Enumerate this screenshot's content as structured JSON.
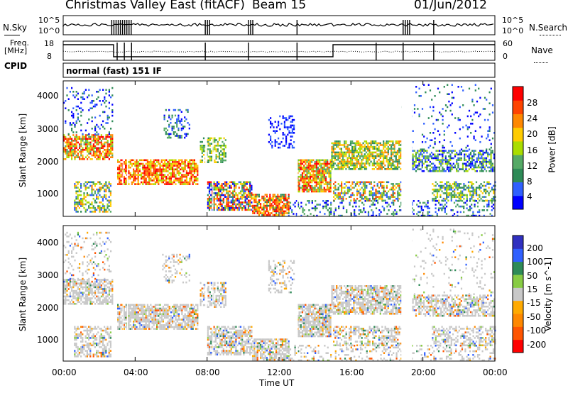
{
  "header": {
    "title": "Christmas Valley East (fitACF)",
    "beam": "Beam 15",
    "date": "01/Jun/2012"
  },
  "panels": {
    "nsky": {
      "label": "N.Sky",
      "yticks": [
        "10^5",
        "10^0"
      ],
      "right_ticks": [
        "10^5",
        "10^0"
      ],
      "right_label": "N.Search"
    },
    "freq": {
      "label1": "Freq.",
      "label2": "[MHz]",
      "yticks": [
        "18",
        "8"
      ],
      "right_ticks": [
        "60",
        "0"
      ],
      "right_label": "Nave"
    },
    "cpid": {
      "label": "CPID",
      "text": "normal (fast) 151 IF"
    }
  },
  "colors": {
    "power": [
      "#0000ff",
      "#3060ff",
      "#2e8b57",
      "#55aa66",
      "#aadd00",
      "#ffcc00",
      "#ff8800",
      "#ff4400",
      "#ff0000"
    ],
    "velocity": [
      "#3030c0",
      "#3060ff",
      "#2e8b57",
      "#88cc44",
      "#c8c8c8",
      "#ffaa00",
      "#ff8800",
      "#ff5500",
      "#ff0000"
    ]
  },
  "chart_data": [
    {
      "type": "heatmap",
      "ylabel": "Slant Range [km]",
      "xlabel": "Time UT",
      "ylim": [
        180,
        4500
      ],
      "xlim": [
        0,
        24
      ],
      "x_ticks": [
        "00:00",
        "04:00",
        "08:00",
        "12:00",
        "16:00",
        "20:00",
        "00:00"
      ],
      "y_ticks": [
        "1000",
        "2000",
        "3000",
        "4000"
      ],
      "colorbar": {
        "label": "Power [dB]",
        "ticks": [
          "4",
          "8",
          "12",
          "16",
          "20",
          "24",
          "28"
        ]
      }
    },
    {
      "type": "heatmap",
      "ylabel": "Slant Range [km]",
      "xlabel": "Time UT",
      "ylim": [
        180,
        4500
      ],
      "xlim": [
        0,
        24
      ],
      "x_ticks": [
        "00:00",
        "04:00",
        "08:00",
        "12:00",
        "16:00",
        "20:00",
        "00:00"
      ],
      "y_ticks": [
        "1000",
        "2000",
        "3000",
        "4000"
      ],
      "colorbar": {
        "label": "Velocity [m s^-1]",
        "ticks": [
          "200",
          "100",
          "50",
          "15",
          "-15",
          "-50",
          "-100",
          "-200"
        ]
      }
    }
  ]
}
